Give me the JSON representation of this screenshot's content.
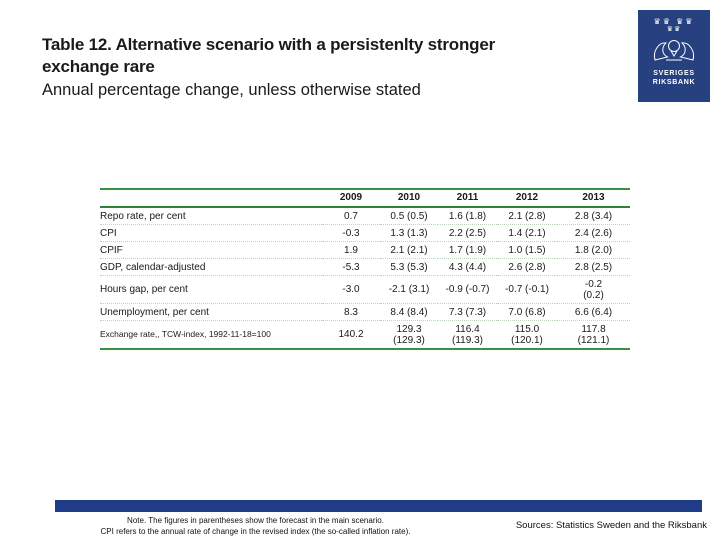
{
  "slide": {
    "title_lines": [
      "Table 12. Alternative scenario with a persistenlty stronger",
      "exchange rare"
    ],
    "subtitle": "Annual percentage change, unless otherwise stated"
  },
  "logo": {
    "crowns_row1": "♛♛ ♛♛",
    "crowns_row2": "♛♛",
    "org_line1": "SVERIGES",
    "org_line2": "RIKSBANK"
  },
  "table": {
    "columns": [
      "2009",
      "2010",
      "2011",
      "2012",
      "2013"
    ],
    "rows": [
      {
        "label": "Repo rate, per cent",
        "values": [
          "0.7",
          "0.5 (0.5)",
          "1.6 (1.8)",
          "2.1 (2.8)",
          "2.8 (3.4)"
        ]
      },
      {
        "label": "CPI",
        "values": [
          "-0.3",
          "1.3 (1.3)",
          "2.2 (2.5)",
          "1.4 (2.1)",
          "2.4 (2.6)"
        ]
      },
      {
        "label": "CPIF",
        "values": [
          "1.9",
          "2.1 (2.1)",
          "1.7 (1.9)",
          "1.0 (1.5)",
          "1.8 (2.0)"
        ]
      },
      {
        "label": "GDP, calendar-adjusted",
        "values": [
          "-5.3",
          "5.3 (5.3)",
          "4.3 (4.4)",
          "2.6 (2.8)",
          "2.8 (2.5)"
        ]
      },
      {
        "label": "Hours gap, per cent",
        "values": [
          "-3.0",
          "-2.1 (3.1)",
          "-0.9 (-0.7)",
          "-0.7 (-0.1)",
          "-0.2\n(0.2)"
        ]
      },
      {
        "label": "Unemployment, per cent",
        "values": [
          "8.3",
          "8.4 (8.4)",
          "7.3 (7.3)",
          "7.0 (6.8)",
          "6.6 (6.4)"
        ]
      },
      {
        "label": "Exchange rate,, TCW-index, 1992-11-18=100",
        "values": [
          "140.2",
          "129.3\n(129.3)",
          "116.4\n(119.3)",
          "115.0\n(120.1)",
          "117.8\n(121.1)"
        ]
      }
    ]
  },
  "footer": {
    "note_lines": [
      "Note. The figures in parentheses show the forecast in the main scenario.",
      "CPI refers to the annual rate of change in the revised index (the so-called inflation rate)."
    ],
    "sources": "Sources: Statistics Sweden and the Riksbank"
  },
  "colors": {
    "table_line_green": "#3a9144",
    "header_line_green": "#2f8038",
    "bar_blue": "#1e3c87",
    "logo_blue": "#27407f"
  }
}
